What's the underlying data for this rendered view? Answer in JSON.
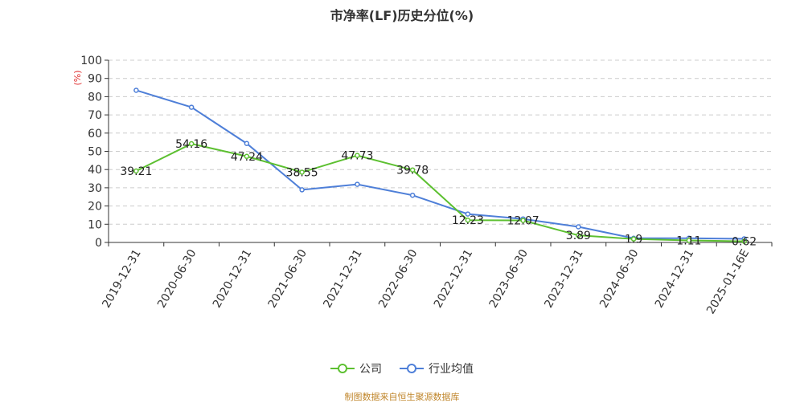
{
  "chart_data": {
    "type": "line",
    "title": "市净率(LF)历史分位(%)",
    "ylabel": "(%)",
    "xlabel": "",
    "ylim": [
      0,
      100
    ],
    "yticks": [
      0,
      10,
      20,
      30,
      40,
      50,
      60,
      70,
      80,
      90,
      100
    ],
    "categories": [
      "2019-12-31",
      "2020-06-30",
      "2020-12-31",
      "2021-06-30",
      "2021-12-31",
      "2022-06-30",
      "2022-12-31",
      "2023-06-30",
      "2023-12-31",
      "2024-06-30",
      "2024-12-31",
      "2025-01-16E"
    ],
    "series": [
      {
        "name": "公司",
        "color": "#5dc031",
        "labeled": true,
        "values": [
          39.21,
          54.16,
          47.24,
          38.55,
          47.73,
          39.78,
          12.23,
          12.07,
          3.89,
          1.9,
          1.11,
          0.62
        ]
      },
      {
        "name": "行业均值",
        "color": "#4e7fd8",
        "labeled": false,
        "values": [
          83.5,
          74.2,
          54.3,
          28.9,
          31.9,
          25.9,
          15.6,
          12.9,
          8.6,
          2.3,
          2.3,
          2.0
        ]
      }
    ],
    "legend_position": "bottom-center"
  },
  "footer": "制图数据来自恒生聚源数据库"
}
